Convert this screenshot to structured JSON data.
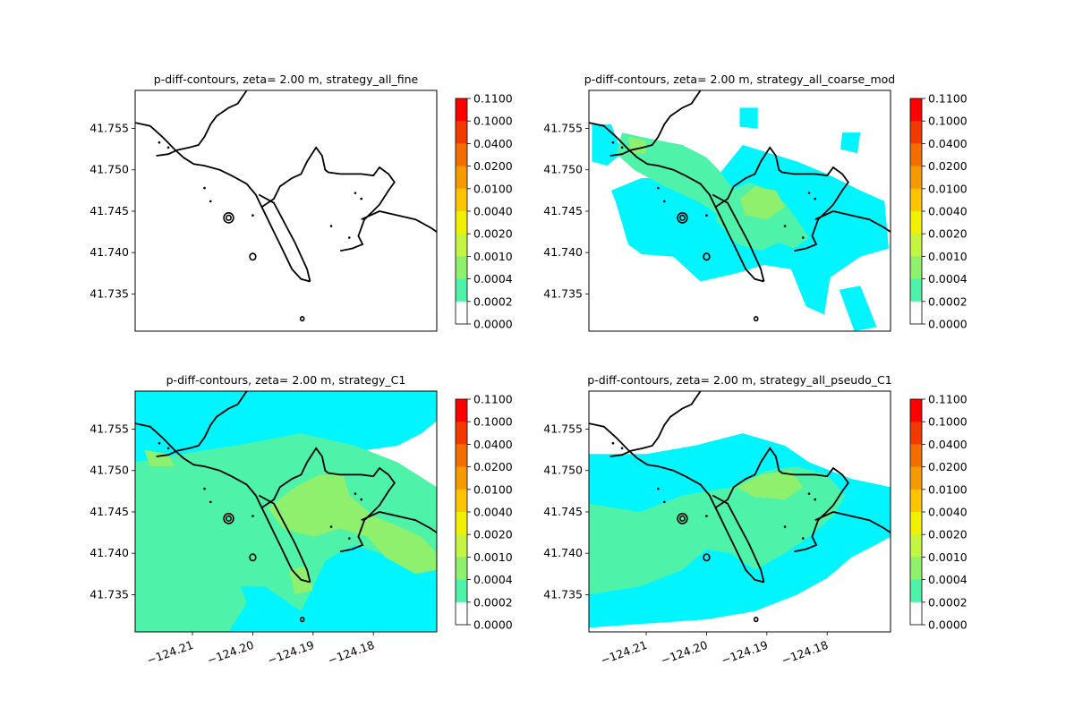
{
  "chart_data": [
    {
      "type": "contour",
      "title": "p-diff-contours, zeta= 2.00 m, strategy_all_fine",
      "xlabel": "",
      "ylabel": "",
      "xlim": [
        -124.2195,
        -124.1695
      ],
      "ylim": [
        41.7305,
        41.7596
      ],
      "xticks": [],
      "yticks": [
        41.735,
        41.74,
        41.745,
        41.75,
        41.755
      ],
      "ytick_labels": [
        "41.735",
        "41.740",
        "41.745",
        "41.750",
        "41.755"
      ],
      "regions": []
    },
    {
      "type": "contour",
      "title": "p-diff-contours, zeta= 2.00 m, strategy_all_coarse_mod",
      "xlabel": "",
      "ylabel": "",
      "xlim": [
        -124.2195,
        -124.1695
      ],
      "ylim": [
        41.7305,
        41.7596
      ],
      "xticks": [],
      "yticks": [
        41.735,
        41.74,
        41.745,
        41.75,
        41.755
      ],
      "ytick_labels": [
        "41.735",
        "41.740",
        "41.745",
        "41.750",
        "41.755"
      ],
      "regions": [
        {
          "level": "0.0002-0.0004",
          "polygon": [
            [
              -124.2158,
              41.7475
            ],
            [
              -124.2108,
              41.749
            ],
            [
              -124.204,
              41.749
            ],
            [
              -124.199,
              41.7485
            ],
            [
              -124.194,
              41.753
            ],
            [
              -124.185,
              41.751
            ],
            [
              -124.18,
              41.7495
            ],
            [
              -124.1745,
              41.7475
            ],
            [
              -124.1705,
              41.7462
            ],
            [
              -124.1698,
              41.7405
            ],
            [
              -124.1745,
              41.7395
            ],
            [
              -124.1795,
              41.737
            ],
            [
              -124.1805,
              41.7325
            ],
            [
              -124.1835,
              41.7335
            ],
            [
              -124.186,
              41.738
            ],
            [
              -124.1905,
              41.7385
            ],
            [
              -124.195,
              41.7375
            ],
            [
              -124.201,
              41.7365
            ],
            [
              -124.2055,
              41.7395
            ],
            [
              -124.2108,
              41.7398
            ],
            [
              -124.213,
              41.741
            ],
            [
              -124.214,
              41.7435
            ],
            [
              -124.215,
              41.746
            ]
          ]
        },
        {
          "level": "0.0002-0.0004",
          "polygon": [
            [
              -124.219,
              41.7555
            ],
            [
              -124.2158,
              41.7555
            ],
            [
              -124.214,
              41.752
            ],
            [
              -124.2165,
              41.7505
            ],
            [
              -124.219,
              41.751
            ]
          ]
        },
        {
          "level": "0.0002-0.0004",
          "polygon": [
            [
              -124.1775,
              41.7545
            ],
            [
              -124.1745,
              41.7545
            ],
            [
              -124.175,
              41.752
            ],
            [
              -124.1778,
              41.7525
            ]
          ]
        },
        {
          "level": "0.0002-0.0004",
          "polygon": [
            [
              -124.1945,
              41.7575
            ],
            [
              -124.1915,
              41.7575
            ],
            [
              -124.1915,
              41.755
            ],
            [
              -124.1945,
              41.7552
            ]
          ]
        },
        {
          "level": "0.0002-0.0004",
          "polygon": [
            [
              -124.178,
              41.7355
            ],
            [
              -124.1745,
              41.736
            ],
            [
              -124.1718,
              41.731
            ],
            [
              -124.1755,
              41.7305
            ]
          ]
        },
        {
          "level": "0.0004-0.0010",
          "polygon": [
            [
              -124.215,
              41.752
            ],
            [
              -124.212,
              41.75
            ],
            [
              -124.2075,
              41.7482
            ],
            [
              -124.201,
              41.746
            ],
            [
              -124.197,
              41.744
            ],
            [
              -124.195,
              41.7455
            ],
            [
              -124.196,
              41.748
            ],
            [
              -124.198,
              41.75
            ],
            [
              -124.2,
              41.7515
            ],
            [
              -124.204,
              41.753
            ],
            [
              -124.211,
              41.754
            ],
            [
              -124.214,
              41.7545
            ]
          ]
        },
        {
          "level": "0.0004-0.0010",
          "polygon": [
            [
              -124.1975,
              41.747
            ],
            [
              -124.193,
              41.7485
            ],
            [
              -124.191,
              41.748
            ],
            [
              -124.187,
              41.746
            ],
            [
              -124.185,
              41.744
            ],
            [
              -124.183,
              41.7418
            ],
            [
              -124.1855,
              41.7405
            ],
            [
              -124.188,
              41.7412
            ],
            [
              -124.191,
              41.7402
            ],
            [
              -124.195,
              41.741
            ],
            [
              -124.1985,
              41.744
            ]
          ]
        },
        {
          "level": "0.0010-0.0020",
          "polygon": [
            [
              -124.192,
              41.748
            ],
            [
              -124.1885,
              41.7475
            ],
            [
              -124.187,
              41.7455
            ],
            [
              -124.19,
              41.744
            ],
            [
              -124.1935,
              41.7445
            ],
            [
              -124.1945,
              41.7465
            ]
          ]
        },
        {
          "level": "0.0010-0.0020",
          "polygon": [
            [
              -124.213,
              41.754
            ],
            [
              -124.21,
              41.7535
            ],
            [
              -124.21,
              41.752
            ],
            [
              -124.2125,
              41.752
            ]
          ]
        }
      ]
    },
    {
      "type": "contour",
      "title": "p-diff-contours, zeta= 2.00 m, strategy_C1",
      "xlabel": "",
      "ylabel": "",
      "xlim": [
        -124.2195,
        -124.1695
      ],
      "ylim": [
        41.7305,
        41.7596
      ],
      "xticks": [
        -124.21,
        -124.2,
        -124.19,
        -124.18
      ],
      "xtick_labels": [
        "−124.21",
        "−124.20",
        "−124.19",
        "−124.18"
      ],
      "yticks": [
        41.735,
        41.74,
        41.745,
        41.75,
        41.755
      ],
      "ytick_labels": [
        "41.735",
        "41.740",
        "41.745",
        "41.750",
        "41.755"
      ],
      "regions": [
        {
          "level": "0.0002-0.0004",
          "polygon": [
            [
              -124.2195,
              41.7305
            ],
            [
              -124.1695,
              41.7305
            ],
            [
              -124.1695,
              41.742
            ],
            [
              -124.175,
              41.742
            ],
            [
              -124.179,
              41.747
            ],
            [
              -124.183,
              41.7495
            ],
            [
              -124.181,
              41.7525
            ],
            [
              -124.176,
              41.753
            ],
            [
              -124.172,
              41.7545
            ],
            [
              -124.1695,
              41.756
            ],
            [
              -124.1695,
              41.7596
            ],
            [
              -124.2195,
              41.7596
            ]
          ]
        },
        {
          "level": "0.0004-0.0010",
          "polygon": [
            [
              -124.2195,
              41.7305
            ],
            [
              -124.204,
              41.7305
            ],
            [
              -124.201,
              41.734
            ],
            [
              -124.202,
              41.736
            ],
            [
              -124.198,
              41.736
            ],
            [
              -124.194,
              41.734
            ],
            [
              -124.192,
              41.733
            ],
            [
              -124.19,
              41.736
            ],
            [
              -124.188,
              41.739
            ],
            [
              -124.186,
              41.74
            ],
            [
              -124.183,
              41.741
            ],
            [
              -124.179,
              41.74
            ],
            [
              -124.174,
              41.739
            ],
            [
              -124.1695,
              41.739
            ],
            [
              -124.1695,
              41.748
            ],
            [
              -124.176,
              41.751
            ],
            [
              -124.183,
              41.753
            ],
            [
              -124.192,
              41.7545
            ],
            [
              -124.203,
              41.753
            ],
            [
              -124.212,
              41.752
            ],
            [
              -124.2195,
              41.751
            ]
          ]
        },
        {
          "level": "0.0010-0.0020",
          "polygon": [
            [
              -124.1975,
              41.7455
            ],
            [
              -124.193,
              41.748
            ],
            [
              -124.189,
              41.7495
            ],
            [
              -124.185,
              41.7495
            ],
            [
              -124.184,
              41.747
            ],
            [
              -124.18,
              41.7445
            ],
            [
              -124.175,
              41.743
            ],
            [
              -124.172,
              41.742
            ],
            [
              -124.1695,
              41.74
            ],
            [
              -124.1695,
              41.738
            ],
            [
              -124.173,
              41.7375
            ],
            [
              -124.178,
              41.7395
            ],
            [
              -124.181,
              41.742
            ],
            [
              -124.1855,
              41.743
            ],
            [
              -124.19,
              41.742
            ],
            [
              -124.195,
              41.743
            ]
          ]
        },
        {
          "level": "0.0010-0.0020",
          "polygon": [
            [
              -124.218,
              41.7525
            ],
            [
              -124.214,
              41.752
            ],
            [
              -124.213,
              41.7505
            ],
            [
              -124.217,
              41.7505
            ]
          ]
        },
        {
          "level": "0.0010-0.0020",
          "polygon": [
            [
              -124.194,
              41.738
            ],
            [
              -124.191,
              41.7385
            ],
            [
              -124.19,
              41.7355
            ],
            [
              -124.193,
              41.735
            ]
          ]
        }
      ]
    },
    {
      "type": "contour",
      "title": "p-diff-contours, zeta= 2.00 m, strategy_all_pseudo_C1",
      "xlabel": "",
      "ylabel": "",
      "xlim": [
        -124.2195,
        -124.1695
      ],
      "ylim": [
        41.7305,
        41.7596
      ],
      "xticks": [
        -124.21,
        -124.2,
        -124.19,
        -124.18
      ],
      "xtick_labels": [
        "−124.21",
        "−124.20",
        "−124.19",
        "−124.18"
      ],
      "yticks": [
        41.735,
        41.74,
        41.745,
        41.75,
        41.755
      ],
      "ytick_labels": [
        "41.735",
        "41.740",
        "41.745",
        "41.750",
        "41.755"
      ],
      "regions": [
        {
          "level": "0.0002-0.0004",
          "polygon": [
            [
              -124.2195,
              41.731
            ],
            [
              -124.21,
              41.7315
            ],
            [
              -124.2,
              41.732
            ],
            [
              -124.192,
              41.733
            ],
            [
              -124.185,
              41.735
            ],
            [
              -124.18,
              41.737
            ],
            [
              -124.176,
              41.7395
            ],
            [
              -124.172,
              41.741
            ],
            [
              -124.1695,
              41.742
            ],
            [
              -124.1695,
              41.748
            ],
            [
              -124.176,
              41.749
            ],
            [
              -124.183,
              41.751
            ],
            [
              -124.187,
              41.753
            ],
            [
              -124.194,
              41.7545
            ],
            [
              -124.202,
              41.753
            ],
            [
              -124.21,
              41.752
            ],
            [
              -124.2195,
              41.752
            ]
          ]
        },
        {
          "level": "0.0004-0.0010",
          "polygon": [
            [
              -124.2195,
              41.735
            ],
            [
              -124.211,
              41.736
            ],
            [
              -124.204,
              41.738
            ],
            [
              -124.2,
              41.7405
            ],
            [
              -124.196,
              41.74
            ],
            [
              -124.192,
              41.738
            ],
            [
              -124.187,
              41.74
            ],
            [
              -124.183,
              41.742
            ],
            [
              -124.179,
              41.7445
            ],
            [
              -124.177,
              41.747
            ],
            [
              -124.18,
              41.7495
            ],
            [
              -124.185,
              41.7505
            ],
            [
              -124.19,
              41.75
            ],
            [
              -124.196,
              41.748
            ],
            [
              -124.204,
              41.747
            ],
            [
              -124.211,
              41.745
            ],
            [
              -124.2195,
              41.746
            ]
          ]
        },
        {
          "level": "0.0010-0.0020",
          "polygon": [
            [
              -124.195,
              41.748
            ],
            [
              -124.191,
              41.7495
            ],
            [
              -124.186,
              41.75
            ],
            [
              -124.184,
              41.748
            ],
            [
              -124.187,
              41.7465
            ],
            [
              -124.192,
              41.7468
            ]
          ]
        }
      ]
    }
  ],
  "colorbar": {
    "labels": [
      "0.1100",
      "0.1000",
      "0.0400",
      "0.0200",
      "0.0100",
      "0.0040",
      "0.0020",
      "0.0010",
      "0.0004",
      "0.0002",
      "0.0000"
    ],
    "colors": [
      "#ff0000",
      "#f23a00",
      "#f26e00",
      "#f59a00",
      "#ffc400",
      "#f0f000",
      "#c4f542",
      "#8ef06c",
      "#4ef2a8",
      "#00f5ff",
      "#ffffff"
    ]
  },
  "level_colors": {
    "0.0002-0.0004": "#00f5ff",
    "0.0004-0.0010": "#4ef2a8",
    "0.0010-0.0020": "#8ef06c"
  },
  "coastline_color": "#000000"
}
